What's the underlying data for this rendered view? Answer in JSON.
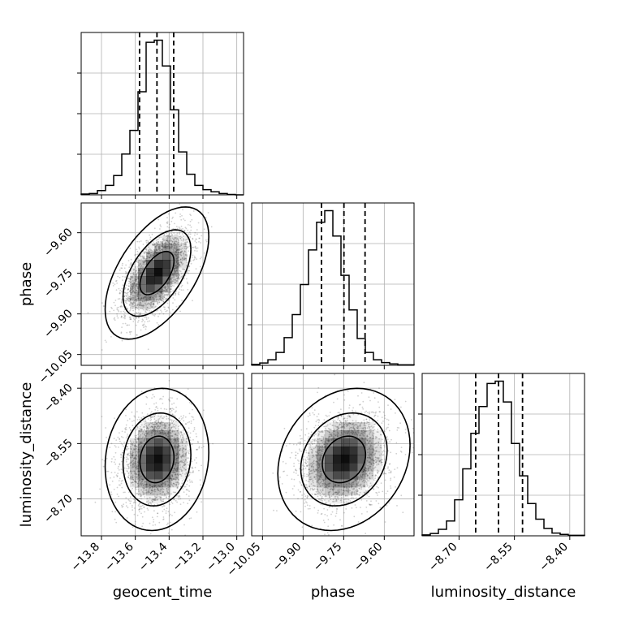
{
  "chart_data": {
    "type": "corner",
    "parameters": [
      "geocent_time",
      "phase",
      "luminosity_distance"
    ],
    "labels": {
      "geocent_time": "geocent_time",
      "phase": "phase",
      "luminosity_distance": "luminosity_distance"
    },
    "ranges": {
      "geocent_time": [
        -13.92,
        -12.96
      ],
      "phase": [
        -10.09,
        -9.49
      ],
      "luminosity_distance": [
        -8.8,
        -8.36
      ]
    },
    "ticks": {
      "geocent_time": [
        -13.8,
        -13.6,
        -13.4,
        -13.2,
        -13.0
      ],
      "phase": [
        -10.05,
        -9.9,
        -9.75,
        -9.6
      ],
      "luminosity_distance": [
        -8.7,
        -8.55,
        -8.4
      ]
    },
    "tick_labels": {
      "geocent_time": [
        "−13.8",
        "−13.6",
        "−13.4",
        "−13.2",
        "−13.0"
      ],
      "phase": [
        "−10.05",
        "−9.90",
        "−9.75",
        "−9.60"
      ],
      "luminosity_distance": [
        "−8.70",
        "−8.55",
        "−8.40"
      ]
    },
    "quantiles": {
      "geocent_time": [
        -13.575,
        -13.472,
        -13.373
      ],
      "phase": [
        -9.832,
        -9.749,
        -9.671
      ],
      "luminosity_distance": [
        -8.655,
        -8.593,
        -8.528
      ]
    },
    "histograms": {
      "geocent_time": {
        "bins": 20,
        "counts": [
          2,
          3,
          10,
          22,
          45,
          95,
          150,
          240,
          355,
          360,
          300,
          198,
          100,
          48,
          22,
          12,
          7,
          3,
          1,
          0
        ]
      },
      "phase": {
        "bins": 20,
        "counts": [
          2,
          5,
          12,
          28,
          60,
          110,
          175,
          250,
          310,
          335,
          280,
          195,
          120,
          58,
          28,
          12,
          6,
          3,
          1,
          1
        ]
      },
      "luminosity_distance": {
        "bins": 20,
        "counts": [
          2,
          5,
          14,
          32,
          78,
          145,
          222,
          280,
          330,
          335,
          290,
          200,
          130,
          70,
          36,
          16,
          6,
          3,
          1,
          1
        ]
      }
    },
    "correlations": {
      "phase|geocent_time": 0.55,
      "luminosity_distance|geocent_time": 0.1,
      "luminosity_distance|phase": 0.2
    },
    "contour_levels": [
      0.39,
      0.86,
      0.99
    ],
    "grid": true,
    "colors": {
      "line": "#000000",
      "grid": "#b0b0b0",
      "points": "#555555",
      "density": "#000000"
    }
  }
}
